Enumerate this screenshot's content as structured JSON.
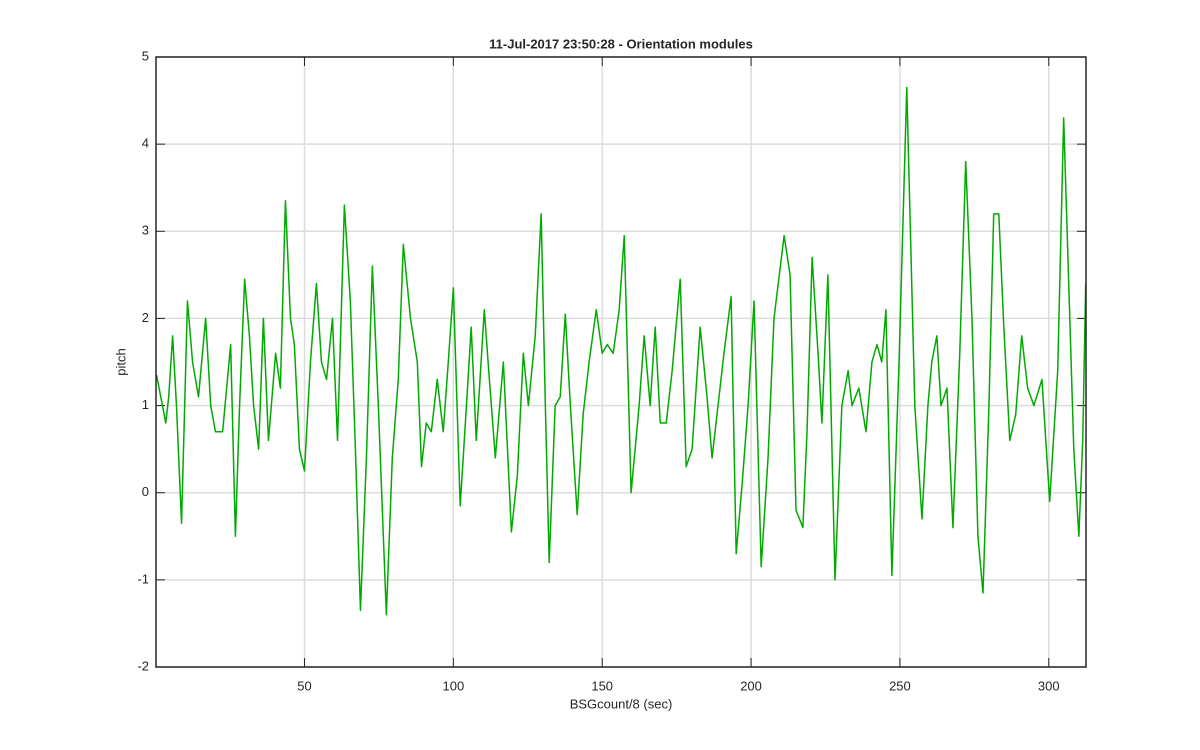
{
  "chart_data": {
    "type": "line",
    "title": "11-Jul-2017 23:50:28 - Orientation modules",
    "xlabel": "BSGcount/8 (sec)",
    "ylabel": "pitch",
    "color": "#00aa00",
    "grid": true,
    "xlim": [
      0.125,
      312.5
    ],
    "ylim": [
      -2,
      5
    ],
    "xticks": [
      50,
      100,
      150,
      200,
      250,
      300
    ],
    "yticks": [
      -2,
      -1,
      0,
      1,
      2,
      3,
      4,
      5
    ],
    "x": [
      0.3,
      2.3,
      3.4,
      4.4,
      5.7,
      7.0,
      8.7,
      10.7,
      12.4,
      14.4,
      16.8,
      18.5,
      20.1,
      22.5,
      25.2,
      26.8,
      28.2,
      29.9,
      31.5,
      32.9,
      34.6,
      36.2,
      37.9,
      40.3,
      41.9,
      43.6,
      45.3,
      46.6,
      48.3,
      50,
      52.0,
      54.0,
      55.7,
      57.4,
      59.4,
      61.1,
      63.4,
      65.4,
      67.1,
      68.8,
      70.8,
      72.8,
      74.8,
      77.5,
      79.5,
      81.5,
      83.2,
      85.6,
      87.9,
      89.3,
      90.9,
      92.6,
      94.6,
      96.6,
      98.3,
      100,
      102.3,
      104.4,
      106.0,
      107.7,
      110.4,
      112.1,
      114.1,
      116.8,
      119.5,
      121.5,
      123.5,
      125.2,
      127.5,
      129.5,
      130.9,
      132.2,
      134.2,
      135.9,
      137.6,
      139.3,
      141.6,
      143.6,
      145.6,
      148.0,
      150,
      151.7,
      153.7,
      155.7,
      157.4,
      159.7,
      162.4,
      164.1,
      166.1,
      167.8,
      169.5,
      171.5,
      173.5,
      176.2,
      178.2,
      180.2,
      182.9,
      185.2,
      186.9,
      188.9,
      190.9,
      193.3,
      195.0,
      197.0,
      199.0,
      201.0,
      203.4,
      205.7,
      207.7,
      211.1,
      213.1,
      215.1,
      217.4,
      218.8,
      220.5,
      222.5,
      223.8,
      225.8,
      228.2,
      230.5,
      232.6,
      233.9,
      236.2,
      238.6,
      240.6,
      242.3,
      243.9,
      245.3,
      247.3,
      249.7,
      252.3,
      255.0,
      257.4,
      259.4,
      260.7,
      262.4,
      263.8,
      265.8,
      267.8,
      270.1,
      272.1,
      274.2,
      276.2,
      277.9,
      279.9,
      281.5,
      283.2,
      284.9,
      286.9,
      288.9,
      290.9,
      292.9,
      295.0,
      297.7,
      300.3,
      303.0,
      305.0,
      306.7,
      308.4,
      310.1,
      311.4,
      312.4
    ],
    "values": [
      1.35,
      1.0,
      0.8,
      1.1,
      1.8,
      1.0,
      -0.35,
      2.2,
      1.5,
      1.1,
      2.0,
      1.0,
      0.7,
      0.7,
      1.7,
      -0.5,
      1.0,
      2.45,
      1.8,
      1.0,
      0.5,
      2.0,
      0.6,
      1.6,
      1.2,
      3.35,
      2.0,
      1.7,
      0.5,
      0.25,
      1.5,
      2.4,
      1.5,
      1.3,
      2.0,
      0.6,
      3.3,
      2.2,
      0.5,
      -1.35,
      0.4,
      2.6,
      1.0,
      -1.4,
      0.4,
      1.3,
      2.85,
      2.0,
      1.5,
      0.3,
      0.8,
      0.7,
      1.3,
      0.7,
      1.5,
      2.35,
      -0.15,
      1.0,
      1.9,
      0.6,
      2.1,
      1.3,
      0.4,
      1.5,
      -0.45,
      0.2,
      1.6,
      1.0,
      1.8,
      3.2,
      1.0,
      -0.8,
      1.0,
      1.1,
      2.05,
      1.0,
      -0.25,
      0.9,
      1.5,
      2.1,
      1.6,
      1.7,
      1.6,
      2.1,
      2.95,
      0.0,
      1.0,
      1.8,
      1.0,
      1.9,
      0.8,
      0.8,
      1.4,
      2.45,
      0.3,
      0.5,
      1.9,
      1.1,
      0.4,
      1.0,
      1.6,
      2.25,
      -0.7,
      0.1,
      1.0,
      2.2,
      -0.85,
      0.4,
      2.0,
      2.95,
      2.5,
      -0.2,
      -0.4,
      0.7,
      2.7,
      1.6,
      0.8,
      2.5,
      -1.0,
      1.0,
      1.4,
      1.0,
      1.2,
      0.7,
      1.5,
      1.7,
      1.5,
      2.1,
      -0.95,
      1.5,
      4.65,
      1.0,
      -0.3,
      1.0,
      1.5,
      1.8,
      1.0,
      1.2,
      -0.4,
      1.6,
      3.8,
      2.0,
      -0.5,
      -1.15,
      1.0,
      3.2,
      3.2,
      1.9,
      0.6,
      0.9,
      1.8,
      1.2,
      1.0,
      1.3,
      -0.1,
      1.4,
      4.3,
      2.4,
      0.5,
      -0.5,
      0.6,
      2.4
    ]
  }
}
